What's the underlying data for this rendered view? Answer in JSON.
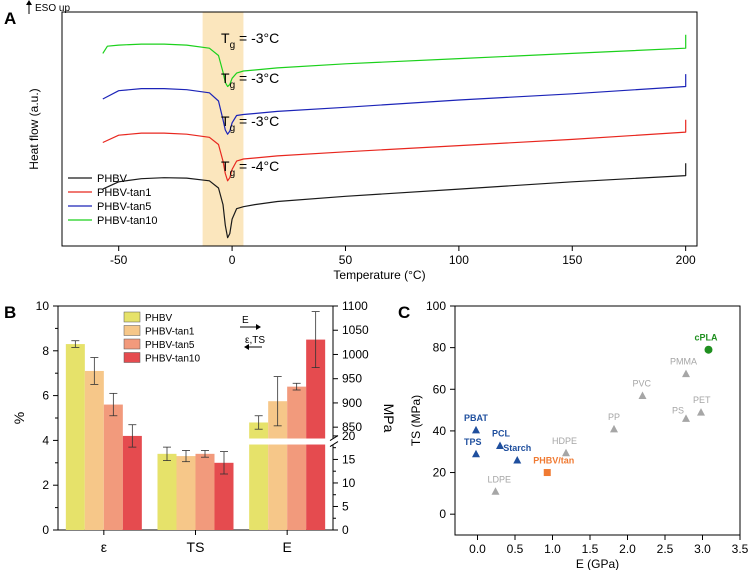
{
  "colors": {
    "phbv": "#1a1a1a",
    "tan1": "#e8271f",
    "tan5": "#1c24b8",
    "tan10": "#1cd11c",
    "tg_band": "#fbe6bd",
    "bar_phbv": "#e6e26a",
    "bar_tan1": "#f6c789",
    "bar_tan5": "#f29a7c",
    "bar_tan10": "#e54b4f",
    "blue_marker": "#1f4f9e",
    "gray_marker": "#a6a6a6",
    "orange_marker": "#f07a32",
    "green_marker": "#1f8f1f"
  },
  "chart_data": [
    {
      "panel": "A",
      "type": "line",
      "xlabel": "Temperature (°C)",
      "ylabel": "Heat flow (a.u.)",
      "direction_label": "ESO up",
      "xlim": [
        -75,
        205
      ],
      "xticks": [
        -50,
        0,
        50,
        100,
        150,
        200
      ],
      "tg_band": [
        -13,
        5
      ],
      "tg_labels": [
        {
          "series": "PHBV-tan10",
          "prefix": "T",
          "sub": "g",
          "value": " = -3°C"
        },
        {
          "series": "PHBV-tan5",
          "prefix": "T",
          "sub": "g",
          "value": " = -3°C"
        },
        {
          "series": "PHBV-tan1",
          "prefix": "T",
          "sub": "g",
          "value": " = -3°C"
        },
        {
          "series": "PHBV",
          "prefix": "T",
          "sub": "g",
          "value": " = -4°C"
        }
      ],
      "series": [
        {
          "name": "PHBV",
          "color_key": "phbv",
          "x": [
            -57,
            -50,
            -40,
            -30,
            -20,
            -10,
            -6,
            -4,
            -3,
            -2,
            -1,
            0,
            2,
            5,
            10,
            20,
            50,
            100,
            150,
            200,
            200
          ],
          "y": [
            0.55,
            0.9,
            1.05,
            1.1,
            1.08,
            0.95,
            0.6,
            -0.2,
            -1.2,
            -1.8,
            -1.6,
            -0.9,
            -0.4,
            -0.3,
            -0.2,
            -0.05,
            0.2,
            0.55,
            0.9,
            1.2,
            1.8
          ]
        },
        {
          "name": "PHBV-tan1",
          "color_key": "tan1",
          "x": [
            -57,
            -50,
            -40,
            -30,
            -20,
            -10,
            -6,
            -4,
            -3,
            -2,
            -1,
            0,
            2,
            5,
            10,
            20,
            50,
            100,
            150,
            200,
            200
          ],
          "y": [
            2.8,
            3.15,
            3.25,
            3.25,
            3.2,
            3.05,
            2.7,
            1.9,
            1.3,
            0.95,
            1.1,
            1.5,
            1.9,
            2.0,
            2.05,
            2.15,
            2.35,
            2.65,
            2.95,
            3.3,
            3.9
          ]
        },
        {
          "name": "PHBV-tan5",
          "color_key": "tan5",
          "x": [
            -57,
            -50,
            -40,
            -30,
            -20,
            -10,
            -6,
            -4,
            -3,
            -2,
            -1,
            0,
            2,
            5,
            10,
            20,
            50,
            100,
            150,
            200,
            200
          ],
          "y": [
            4.9,
            5.3,
            5.4,
            5.4,
            5.35,
            5.2,
            4.8,
            3.9,
            3.4,
            3.2,
            3.35,
            3.75,
            4.1,
            4.15,
            4.2,
            4.3,
            4.5,
            4.85,
            5.15,
            5.5,
            6.1
          ]
        },
        {
          "name": "PHBV-tan10",
          "color_key": "tan10",
          "x": [
            -57,
            -55,
            -50,
            -40,
            -30,
            -20,
            -10,
            -6,
            -4,
            -3,
            -2,
            -1,
            0,
            2,
            5,
            10,
            20,
            50,
            100,
            150,
            200,
            200
          ],
          "y": [
            7.1,
            7.45,
            7.5,
            7.55,
            7.55,
            7.5,
            7.35,
            7.0,
            6.2,
            5.7,
            5.5,
            5.6,
            5.9,
            6.15,
            6.25,
            6.3,
            6.4,
            6.6,
            6.85,
            7.1,
            7.35,
            8.0
          ]
        }
      ],
      "legend": [
        "PHBV",
        "PHBV-tan1",
        "PHBV-tan5",
        "PHBV-tan10"
      ]
    },
    {
      "panel": "B",
      "type": "bar",
      "categories": [
        "ε",
        "TS",
        "E"
      ],
      "ylabel_left": "%",
      "ylabel_right": "MPa",
      "ylim_left": [
        0,
        10
      ],
      "yticks_left": [
        0,
        2,
        4,
        6,
        8,
        10
      ],
      "yticks_right_lower": [
        0,
        5,
        10,
        15,
        20
      ],
      "yticks_right_upper": [
        850,
        900,
        950,
        1000,
        1050,
        1100
      ],
      "arrow_labels": {
        "upper": "E",
        "lower": "ε,TS"
      },
      "series": [
        {
          "name": "PHBV",
          "color_key": "bar_phbv",
          "values_display": [
            8.3,
            3.4,
            4.8
          ],
          "err_display": [
            0.15,
            0.3,
            0.3
          ]
        },
        {
          "name": "PHBV-tan1",
          "color_key": "bar_tan1",
          "values_display": [
            7.1,
            3.3,
            5.75
          ],
          "err_display": [
            0.6,
            0.25,
            1.1
          ]
        },
        {
          "name": "PHBV-tan5",
          "color_key": "bar_tan5",
          "values_display": [
            5.6,
            3.4,
            6.4
          ],
          "err_display": [
            0.5,
            0.15,
            0.15
          ]
        },
        {
          "name": "PHBV-tan10",
          "color_key": "bar_tan10",
          "values_display": [
            4.2,
            3.0,
            8.5
          ],
          "err_display": [
            0.5,
            0.5,
            1.25
          ]
        }
      ],
      "legend": [
        "PHBV",
        "PHBV-tan1",
        "PHBV-tan5",
        "PHBV-tan10"
      ]
    },
    {
      "panel": "C",
      "type": "scatter",
      "xlabel": "E (GPa)",
      "ylabel": "TS (MPa)",
      "xlim": [
        -0.3,
        3.5
      ],
      "ylim": [
        -10,
        100
      ],
      "xticks": [
        0.0,
        0.5,
        1.0,
        1.5,
        2.0,
        2.5,
        3.0,
        3.5
      ],
      "yticks": [
        0,
        20,
        40,
        60,
        80,
        100
      ],
      "points": [
        {
          "label": "PBAT",
          "x": -0.02,
          "y": 40.5,
          "shape": "triangle",
          "color_key": "blue_marker",
          "bold": true
        },
        {
          "label": "TPS",
          "x": -0.02,
          "y": 29,
          "shape": "triangle",
          "color_key": "blue_marker",
          "bold": true
        },
        {
          "label": "PCL",
          "x": 0.3,
          "y": 33,
          "shape": "triangle",
          "color_key": "blue_marker",
          "bold": true
        },
        {
          "label": "Starch",
          "x": 0.53,
          "y": 26,
          "shape": "triangle",
          "color_key": "blue_marker",
          "bold": true
        },
        {
          "label": "LDPE",
          "x": 0.24,
          "y": 11,
          "shape": "triangle",
          "color_key": "gray_marker",
          "bold": false
        },
        {
          "label": "HDPE",
          "x": 1.18,
          "y": 29.5,
          "shape": "triangle",
          "color_key": "gray_marker",
          "bold": false
        },
        {
          "label": "PHBV/tan",
          "x": 0.93,
          "y": 20,
          "shape": "square",
          "color_key": "orange_marker",
          "bold": true
        },
        {
          "label": "PP",
          "x": 1.82,
          "y": 41,
          "shape": "triangle",
          "color_key": "gray_marker",
          "bold": false
        },
        {
          "label": "PVC",
          "x": 2.2,
          "y": 57,
          "shape": "triangle",
          "color_key": "gray_marker",
          "bold": false
        },
        {
          "label": "PMMA",
          "x": 2.78,
          "y": 67.5,
          "shape": "triangle",
          "color_key": "gray_marker",
          "bold": false
        },
        {
          "label": "PS",
          "x": 2.78,
          "y": 46,
          "shape": "triangle",
          "color_key": "gray_marker",
          "bold": false
        },
        {
          "label": "PET",
          "x": 2.98,
          "y": 49,
          "shape": "triangle",
          "color_key": "gray_marker",
          "bold": false
        },
        {
          "label": "cPLA",
          "x": 3.08,
          "y": 79,
          "shape": "circle",
          "color_key": "green_marker",
          "bold": true
        }
      ]
    }
  ],
  "panel_labels": [
    "A",
    "B",
    "C"
  ]
}
